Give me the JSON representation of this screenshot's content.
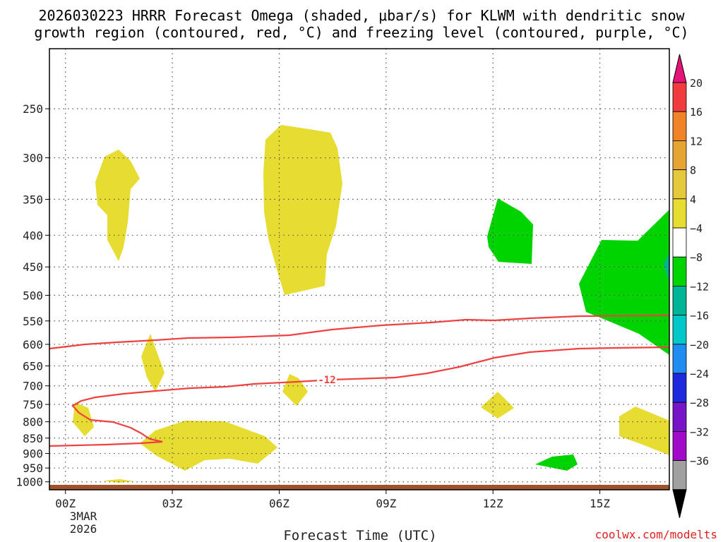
{
  "chart_data": {
    "type": "contour",
    "title_lines": [
      "2026030223 HRRR Forecast Omega (shaded, μbar/s) for KLWM with dendritic snow",
      "growth region (contoured, red, °C) and freezing level (contoured, purple, °C)"
    ],
    "xlabel": "Forecast Time (UTC)",
    "x_ticks": [
      {
        "hour": 0,
        "label": "00Z"
      },
      {
        "hour": 3,
        "label": "03Z"
      },
      {
        "hour": 6,
        "label": "06Z"
      },
      {
        "hour": 9,
        "label": "09Z"
      },
      {
        "hour": 12,
        "label": "12Z"
      },
      {
        "hour": 15,
        "label": "15Z"
      }
    ],
    "date_label": [
      "3MAR",
      "2026"
    ],
    "xlim": [
      -0.45,
      16.95
    ],
    "y_ticks": [
      250,
      300,
      350,
      400,
      450,
      500,
      550,
      600,
      650,
      700,
      750,
      800,
      850,
      900,
      950,
      1000
    ],
    "ylim": [
      1030,
      200
    ],
    "grid": true,
    "colorbar": {
      "ticks": [
        "20",
        "16",
        "12",
        "8",
        "4",
        "−4",
        "−8",
        "−12",
        "−16",
        "−20",
        "−24",
        "−28",
        "−32",
        "−36"
      ],
      "colors": [
        "#f03c3c",
        "#f08228",
        "#e6a532",
        "#e6c83c",
        "#e6dc32",
        "#ffffff",
        "#00d400",
        "#00b496",
        "#00c8c8",
        "#1e8cf0",
        "#1e28dc",
        "#7814c8",
        "#a00ac8",
        "#a0a0a0"
      ],
      "over_color": "#e6147a",
      "under_color": "#000000"
    },
    "contour_label": "-12",
    "contour_color": "#f04040",
    "ground_color": "#a0522d",
    "credit": "coolwx.com/modelts"
  }
}
